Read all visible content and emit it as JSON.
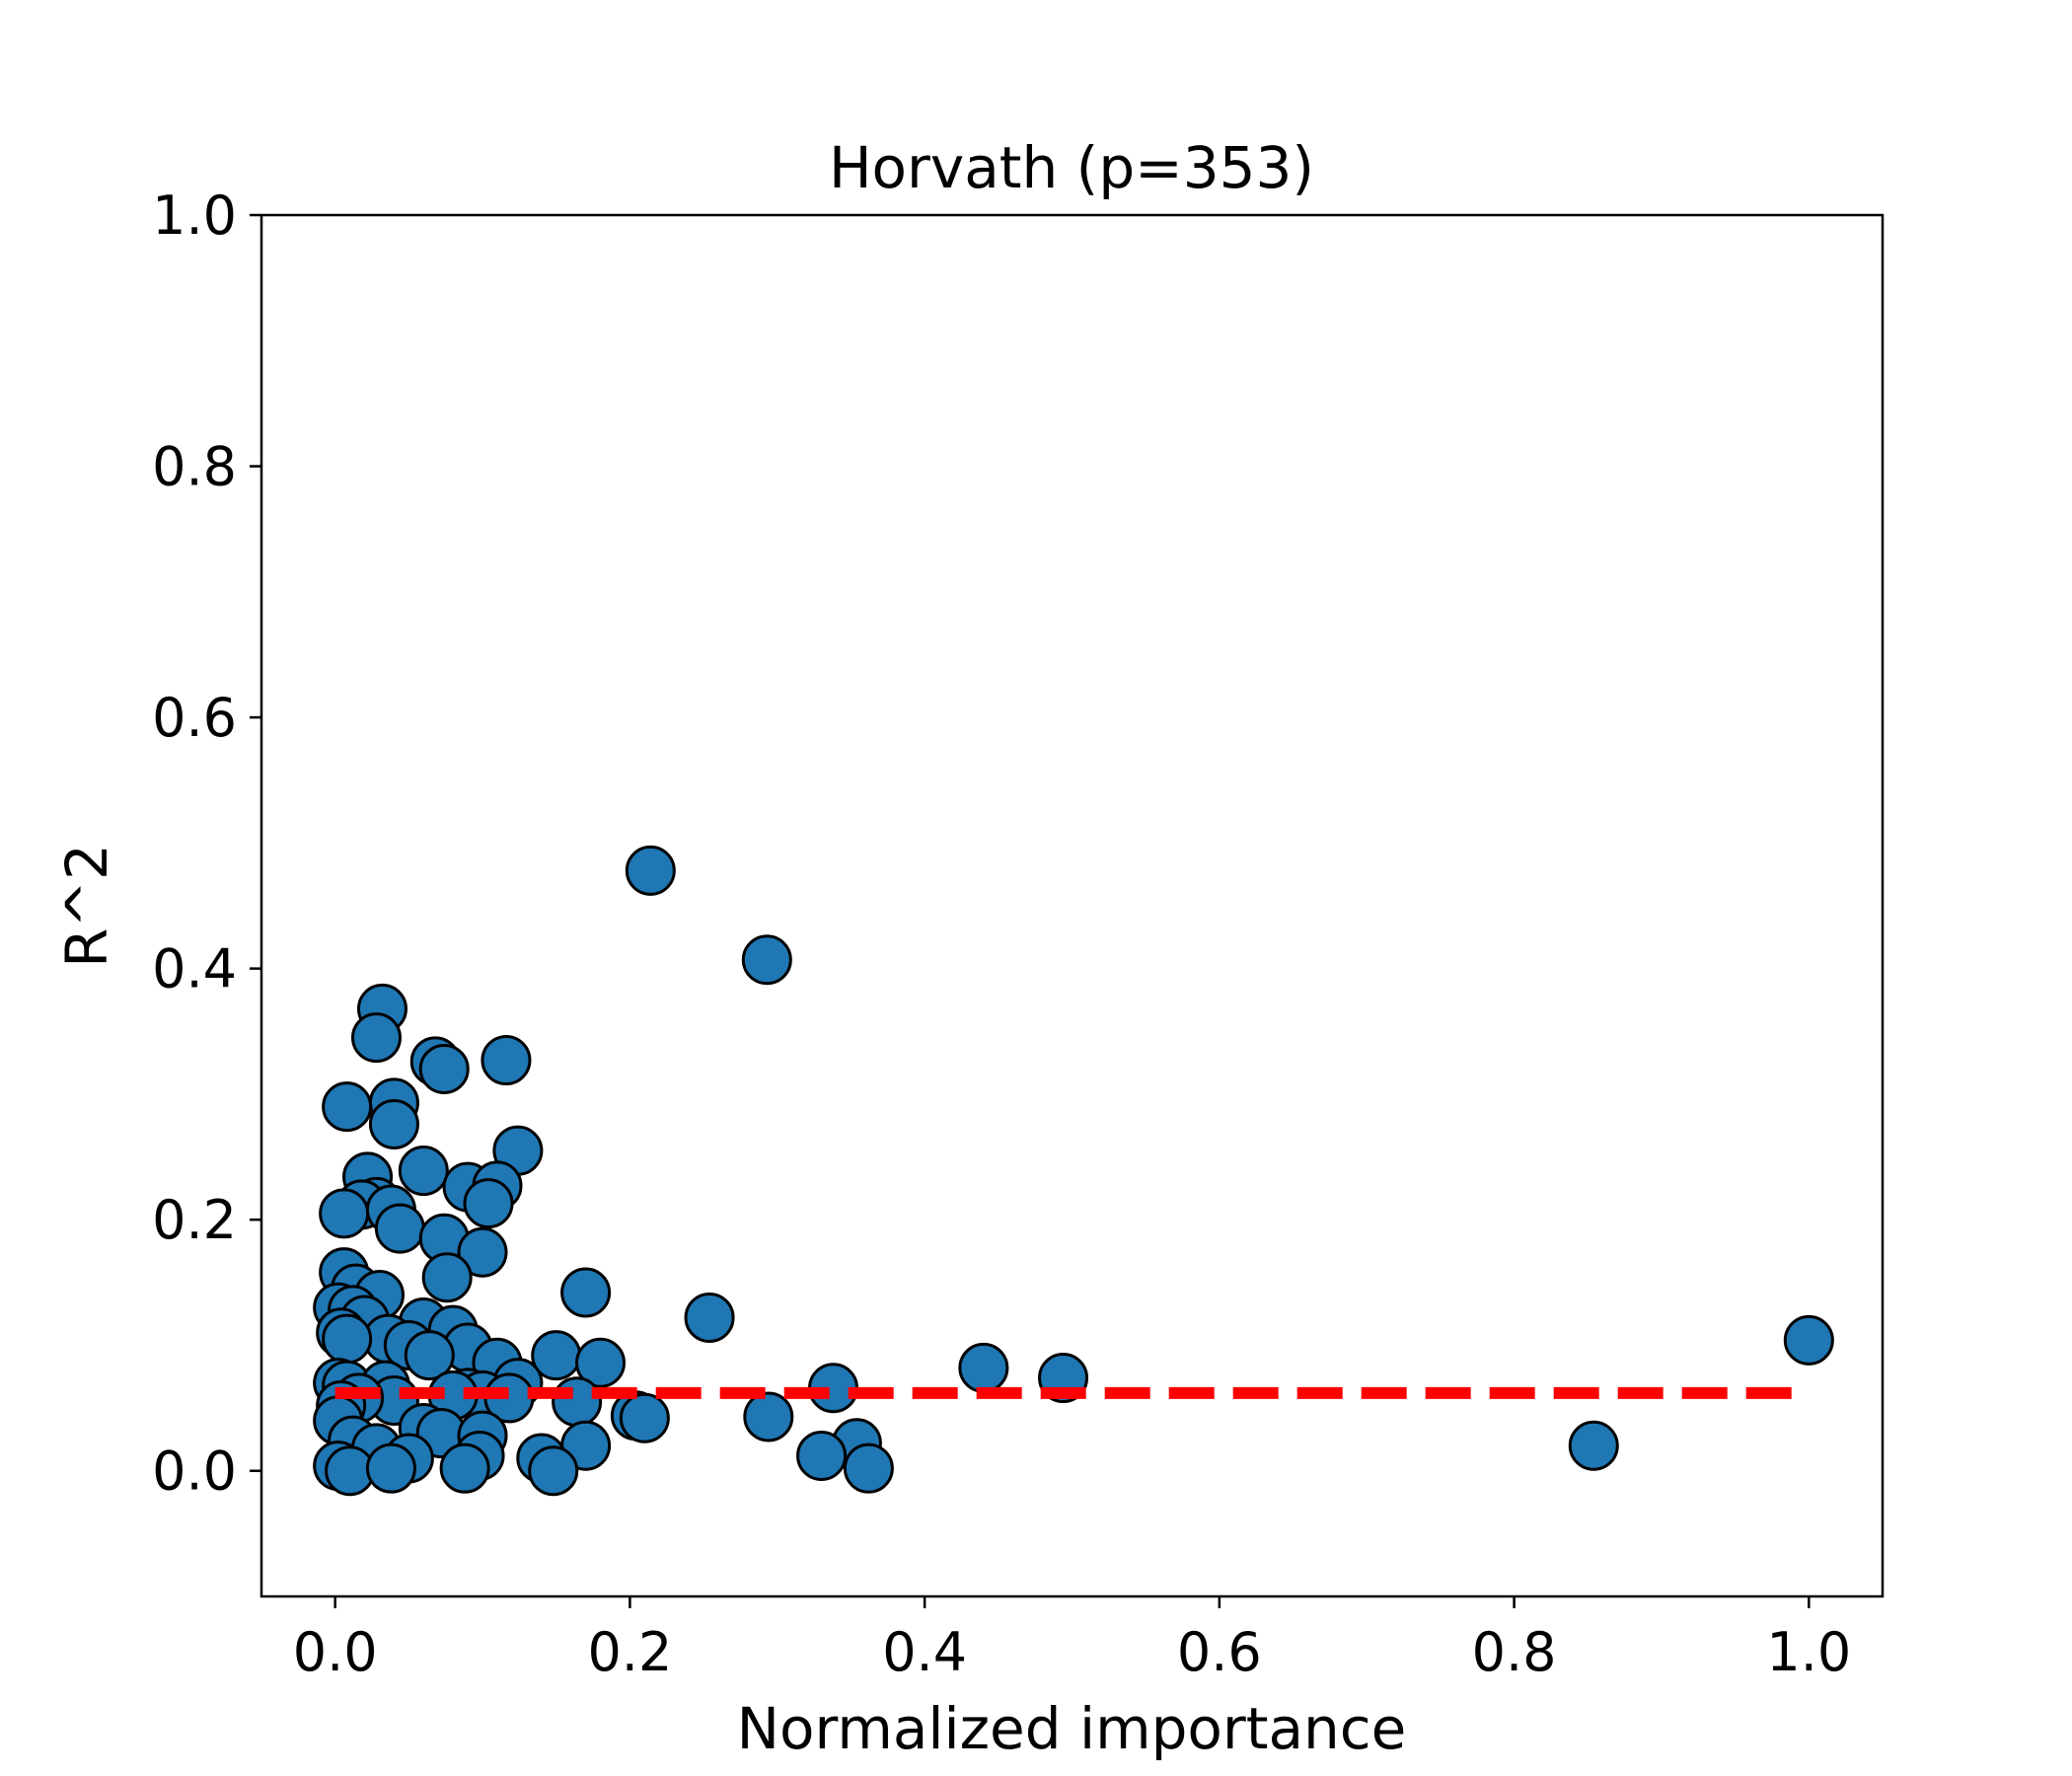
{
  "chart_data": {
    "type": "scatter",
    "title": "Horvath (p=353)",
    "xlabel": "Normalized importance",
    "ylabel": "R^2",
    "xlim": [
      -0.05,
      1.05
    ],
    "ylim": [
      -0.1,
      1.0
    ],
    "xticks": [
      "0.0",
      "0.2",
      "0.4",
      "0.6",
      "0.8",
      "1.0"
    ],
    "yticks": [
      "0.0",
      "0.2",
      "0.4",
      "0.6",
      "0.8",
      "1.0"
    ],
    "grid": false,
    "marker_color": "#1f77b4",
    "marker_edge_color": "#000000",
    "reference_line": {
      "y": 0.062,
      "x_range": [
        0.0,
        1.0
      ],
      "color": "#ff0000",
      "style": "dashed"
    },
    "points": [
      [
        0.214,
        0.478
      ],
      [
        0.293,
        0.407
      ],
      [
        0.032,
        0.368
      ],
      [
        0.028,
        0.345
      ],
      [
        0.068,
        0.326
      ],
      [
        0.116,
        0.327
      ],
      [
        0.074,
        0.32
      ],
      [
        0.04,
        0.293
      ],
      [
        0.008,
        0.29
      ],
      [
        0.04,
        0.276
      ],
      [
        0.124,
        0.255
      ],
      [
        0.06,
        0.239
      ],
      [
        0.022,
        0.234
      ],
      [
        0.09,
        0.226
      ],
      [
        0.11,
        0.227
      ],
      [
        0.104,
        0.213
      ],
      [
        0.028,
        0.214
      ],
      [
        0.018,
        0.212
      ],
      [
        0.006,
        0.205
      ],
      [
        0.038,
        0.208
      ],
      [
        0.044,
        0.193
      ],
      [
        0.074,
        0.185
      ],
      [
        0.1,
        0.174
      ],
      [
        0.006,
        0.158
      ],
      [
        0.076,
        0.154
      ],
      [
        0.17,
        0.142
      ],
      [
        0.014,
        0.145
      ],
      [
        0.03,
        0.14
      ],
      [
        0.002,
        0.13
      ],
      [
        0.012,
        0.128
      ],
      [
        0.254,
        0.122
      ],
      [
        0.02,
        0.12
      ],
      [
        0.06,
        0.118
      ],
      [
        0.08,
        0.112
      ],
      [
        0.004,
        0.11
      ],
      [
        0.036,
        0.105
      ],
      [
        0.008,
        0.105
      ],
      [
        0.05,
        0.1
      ],
      [
        0.09,
        0.098
      ],
      [
        0.064,
        0.092
      ],
      [
        0.15,
        0.092
      ],
      [
        0.18,
        0.086
      ],
      [
        0.11,
        0.086
      ],
      [
        0.44,
        0.082
      ],
      [
        0.494,
        0.074
      ],
      [
        0.002,
        0.07
      ],
      [
        0.008,
        0.068
      ],
      [
        0.034,
        0.068
      ],
      [
        0.124,
        0.07
      ],
      [
        0.338,
        0.066
      ],
      [
        0.09,
        0.062
      ],
      [
        0.1,
        0.06
      ],
      [
        0.118,
        0.058
      ],
      [
        0.08,
        0.06
      ],
      [
        0.04,
        0.056
      ],
      [
        0.016,
        0.058
      ],
      [
        0.004,
        0.052
      ],
      [
        0.164,
        0.055
      ],
      [
        0.204,
        0.044
      ],
      [
        0.21,
        0.042
      ],
      [
        0.294,
        0.043
      ],
      [
        0.002,
        0.04
      ],
      [
        0.06,
        0.034
      ],
      [
        0.072,
        0.03
      ],
      [
        0.1,
        0.028
      ],
      [
        0.012,
        0.024
      ],
      [
        0.028,
        0.018
      ],
      [
        0.17,
        0.02
      ],
      [
        0.354,
        0.022
      ],
      [
        0.854,
        0.02
      ],
      [
        0.33,
        0.012
      ],
      [
        0.14,
        0.01
      ],
      [
        0.098,
        0.012
      ],
      [
        0.05,
        0.01
      ],
      [
        0.002,
        0.004
      ],
      [
        0.01,
        0.0
      ],
      [
        0.038,
        0.002
      ],
      [
        0.088,
        0.002
      ],
      [
        0.148,
        0.0
      ],
      [
        0.362,
        0.002
      ],
      [
        1.0,
        0.104
      ]
    ]
  }
}
